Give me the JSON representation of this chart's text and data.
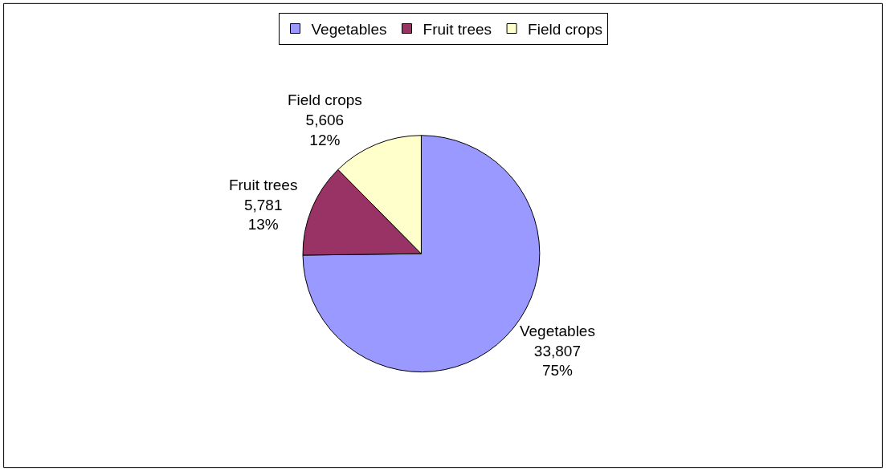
{
  "chart_data": {
    "type": "pie",
    "categories": [
      "Vegetables",
      "Fruit trees",
      "Field crops"
    ],
    "values": [
      33807,
      5781,
      5606
    ],
    "colors": [
      "#9999ff",
      "#993366",
      "#ffffcc"
    ],
    "value_labels": [
      "33,807\n75%",
      "5,781\n13%",
      "5,606\n12%"
    ],
    "legend": "top"
  }
}
